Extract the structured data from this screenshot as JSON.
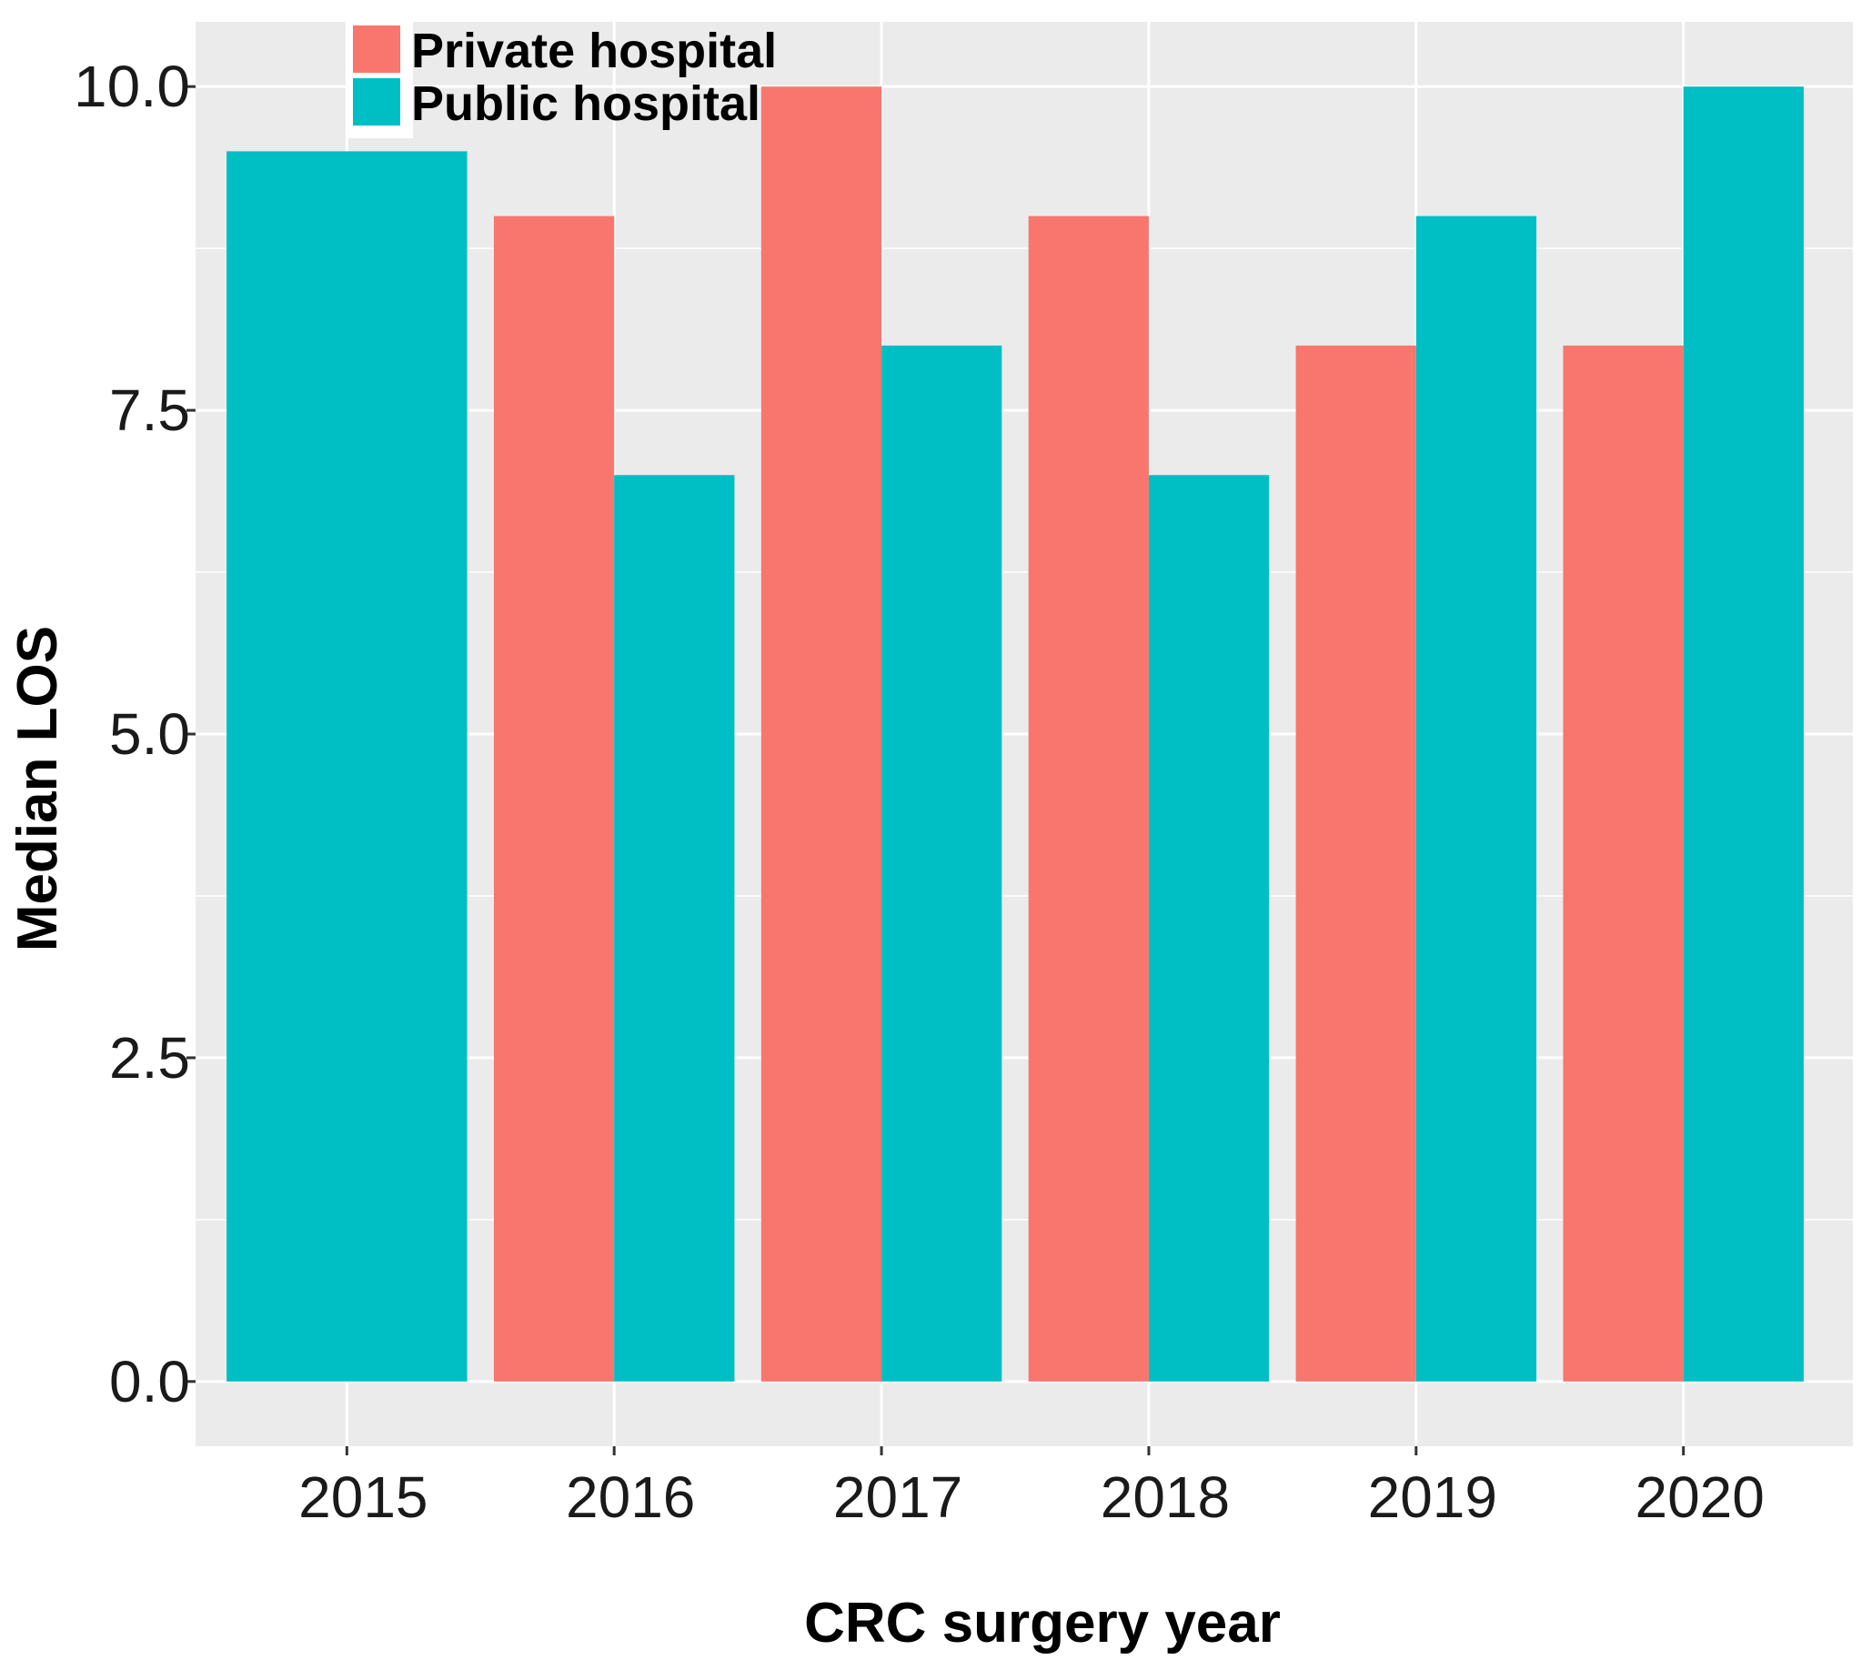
{
  "chart_data": {
    "type": "bar",
    "title": "",
    "xlabel": "CRC surgery year",
    "ylabel": "Median LOS",
    "categories": [
      "2015",
      "2016",
      "2017",
      "2018",
      "2019",
      "2020"
    ],
    "series": [
      {
        "name": "Private hospital",
        "color": "#F8766D",
        "values": [
          null,
          9,
          10,
          9,
          8,
          8
        ]
      },
      {
        "name": "Public hospital",
        "color": "#00BFC4",
        "values": [
          9.5,
          7,
          8,
          7,
          9,
          10
        ]
      }
    ],
    "ylim": [
      -0.5,
      10.5
    ],
    "yticks": [
      0,
      2.5,
      5,
      7.5,
      10
    ],
    "ytick_labels": [
      "0.0",
      "2.5",
      "5.0",
      "7.5",
      "10.0"
    ],
    "grid": true,
    "legend_position": "top-left",
    "panel_color": "#EBEBEB",
    "grid_color": "#FFFFFF"
  }
}
